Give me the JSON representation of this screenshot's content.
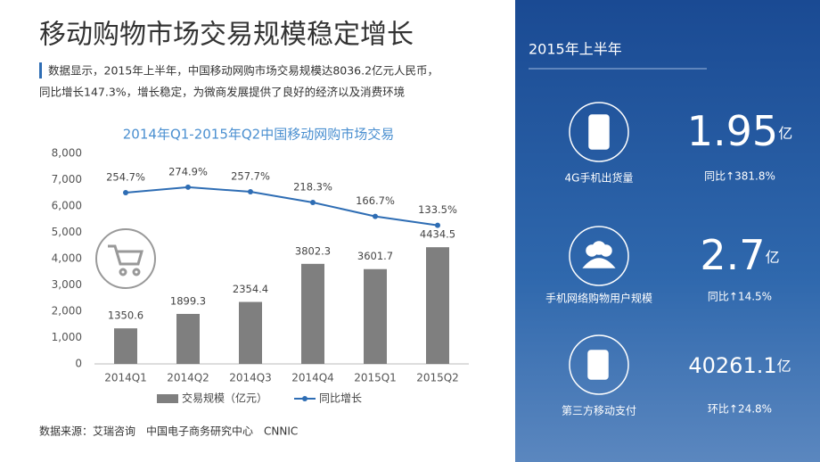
{
  "title": "移动购物市场交易规模稳定增长",
  "intro": [
    "数据显示，2015年上半年，中国移动网购市场交易规模达8036.2亿元人民币，",
    "同比增长147.3%，增长稳定，为微商发展提供了良好的经济以及消费环境"
  ],
  "chart_data": {
    "type": "bar",
    "title": "2014年Q1-2015年Q2中国移动网购市场交易",
    "categories": [
      "2014Q1",
      "2014Q2",
      "2014Q3",
      "2014Q4",
      "2015Q1",
      "2015Q2"
    ],
    "series": [
      {
        "name": "交易规模（亿元）",
        "color": "#7f7f7f",
        "type": "bar",
        "values": [
          1350.6,
          1899.3,
          2354.4,
          3802.3,
          3601.7,
          4434.5
        ]
      },
      {
        "name": "同比增长",
        "color": "#2e6db4",
        "type": "line",
        "axis": "y2",
        "values": [
          254.7,
          274.9,
          257.7,
          218.3,
          166.7,
          133.5
        ],
        "value_labels": [
          "254.7%",
          "274.9%",
          "257.7%",
          "218.3%",
          "166.7%",
          "133.5%"
        ]
      }
    ],
    "ylim": [
      0,
      8000
    ],
    "yticks": [
      0,
      {
        "value": 1000,
        "label": "1,000"
      },
      {
        "value": 2000,
        "label": "2,000"
      },
      {
        "value": 3000,
        "label": "3,000"
      },
      {
        "value": 4000,
        "label": "4,000"
      },
      {
        "value": 5000,
        "label": "5,000"
      },
      {
        "value": 6000,
        "label": "6,000"
      },
      {
        "value": 7000,
        "label": "7,000"
      },
      {
        "value": 8000,
        "label": "8,000"
      }
    ],
    "y2lim": [
      -380,
      400
    ],
    "grid": false,
    "legend": "bottom"
  },
  "source": "数据来源：艾瑞咨询　中国电子商务研究中心　CNNIC",
  "sidebar": {
    "title": "2015年上半年",
    "items": [
      {
        "label": "4G手机出货量",
        "value": "1.95",
        "unit": "亿",
        "change": "同比↑381.8%"
      },
      {
        "label": "手机网络购物用户规模",
        "value": "2.7",
        "unit": "亿",
        "change": "同比↑14.5%"
      },
      {
        "label": "第三方移动支付",
        "value": "40261.1",
        "unit": "亿",
        "change": "环比↑24.8%"
      }
    ]
  }
}
